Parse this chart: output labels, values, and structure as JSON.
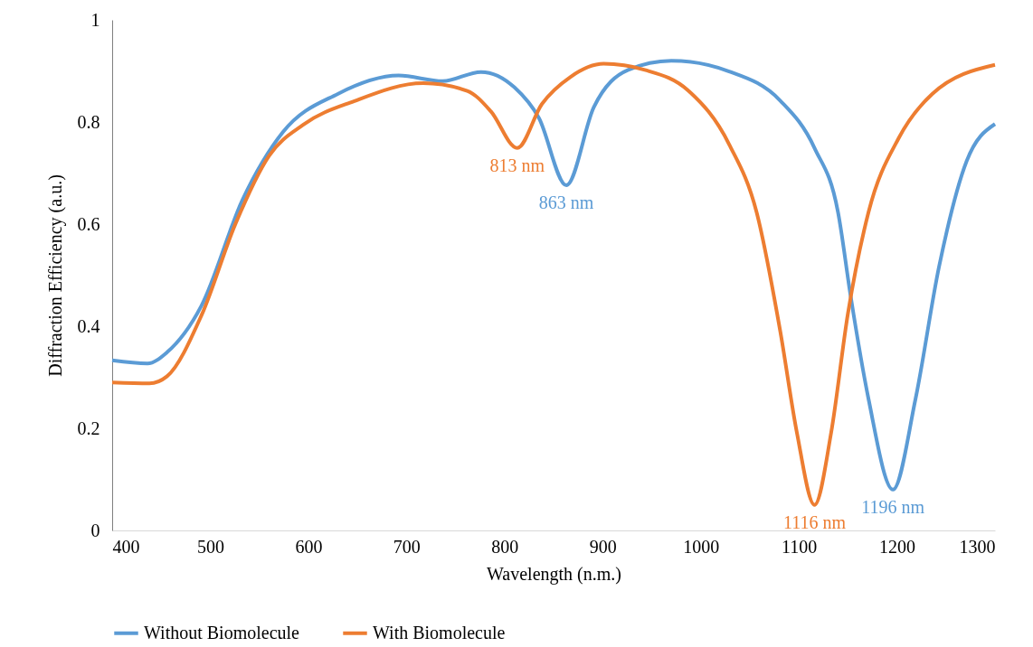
{
  "chart_data": {
    "type": "line",
    "xlabel": "Wavelength (n.m.)",
    "ylabel": "Diffraction Efficiency (a.u.)",
    "xlim": [
      400,
      1300
    ],
    "xticks": [
      400,
      500,
      600,
      700,
      800,
      900,
      1000,
      1100,
      1200,
      1300
    ],
    "ylim": [
      0,
      1
    ],
    "yticks": [
      0,
      0.2,
      0.4,
      0.6,
      0.8,
      1
    ],
    "grid": false,
    "legend": "bottom",
    "marker": "none",
    "line_style": "solid",
    "series": [
      {
        "name": "Without Biomolecule",
        "color": "#5b9bd5",
        "x": [
          400,
          436,
          456,
          491,
          533,
          574,
          630,
          692,
          737,
          776,
          810,
          835,
          863,
          891,
          926,
          970,
          1029,
          1081,
          1116,
          1140,
          1153,
          1171,
          1196,
          1219,
          1243,
          1271,
          1300
        ],
        "values": [
          0.333,
          0.327,
          0.349,
          0.44,
          0.648,
          0.78,
          0.855,
          0.891,
          0.88,
          0.898,
          0.868,
          0.808,
          0.676,
          0.829,
          0.902,
          0.92,
          0.899,
          0.842,
          0.749,
          0.623,
          0.457,
          0.258,
          0.08,
          0.258,
          0.517,
          0.723,
          0.796
        ]
      },
      {
        "name": "With Biomolecule",
        "color": "#ed7d31",
        "x": [
          400,
          438,
          456,
          491,
          526,
          560,
          595,
          647,
          717,
          762,
          786,
          813,
          838,
          867,
          901,
          943,
          987,
          1029,
          1057,
          1081,
          1098,
          1116,
          1133,
          1150,
          1171,
          1202,
          1236,
          1300
        ],
        "values": [
          0.29,
          0.288,
          0.302,
          0.421,
          0.602,
          0.734,
          0.795,
          0.841,
          0.876,
          0.861,
          0.821,
          0.749,
          0.835,
          0.888,
          0.914,
          0.902,
          0.862,
          0.756,
          0.623,
          0.391,
          0.192,
          0.05,
          0.192,
          0.424,
          0.623,
          0.769,
          0.855,
          0.912
        ]
      }
    ],
    "annotations": [
      {
        "text": "813 nm",
        "x": 813,
        "y": 0.749
      },
      {
        "text": "863 nm",
        "x": 863,
        "y": 0.676
      },
      {
        "text": "1116 nm",
        "x": 1116,
        "y": 0.05
      },
      {
        "text": "1196 nm",
        "x": 1196,
        "y": 0.08
      }
    ]
  }
}
